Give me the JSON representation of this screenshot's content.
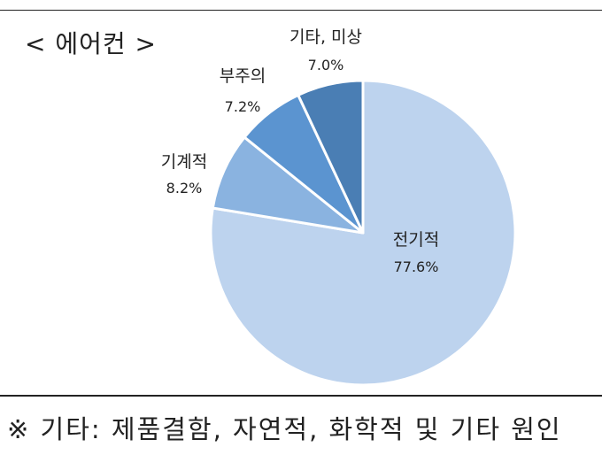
{
  "heading": "< 에어컨 >",
  "footnote": "※ 기타: 제품결함, 자연적, 화학적 및 기타 원인",
  "colors": {
    "slice_light": "#bdd3ee",
    "slice_mid_light": "#8ab3e0",
    "slice_mid": "#5b94d0",
    "slice_dark": "#4a7eb4",
    "divider": "#ffffff",
    "rule": "#222222"
  },
  "chart_data": {
    "type": "pie",
    "title": "< 에어컨 >",
    "start_angle_deg": 0,
    "direction": "clockwise",
    "slices": [
      {
        "label": "전기적",
        "value": 77.6,
        "value_label": "77.6%",
        "color": "#bdd3ee"
      },
      {
        "label": "기계적",
        "value": 8.2,
        "value_label": "8.2%",
        "color": "#8ab3e0"
      },
      {
        "label": "부주의",
        "value": 7.2,
        "value_label": "7.2%",
        "color": "#5b94d0"
      },
      {
        "label": "기타, 미상",
        "value": 7.0,
        "value_label": "7.0%",
        "color": "#4a7eb4"
      }
    ],
    "legend": "none",
    "note": "※ 기타: 제품결함, 자연적, 화학적 및 기타 원인"
  }
}
